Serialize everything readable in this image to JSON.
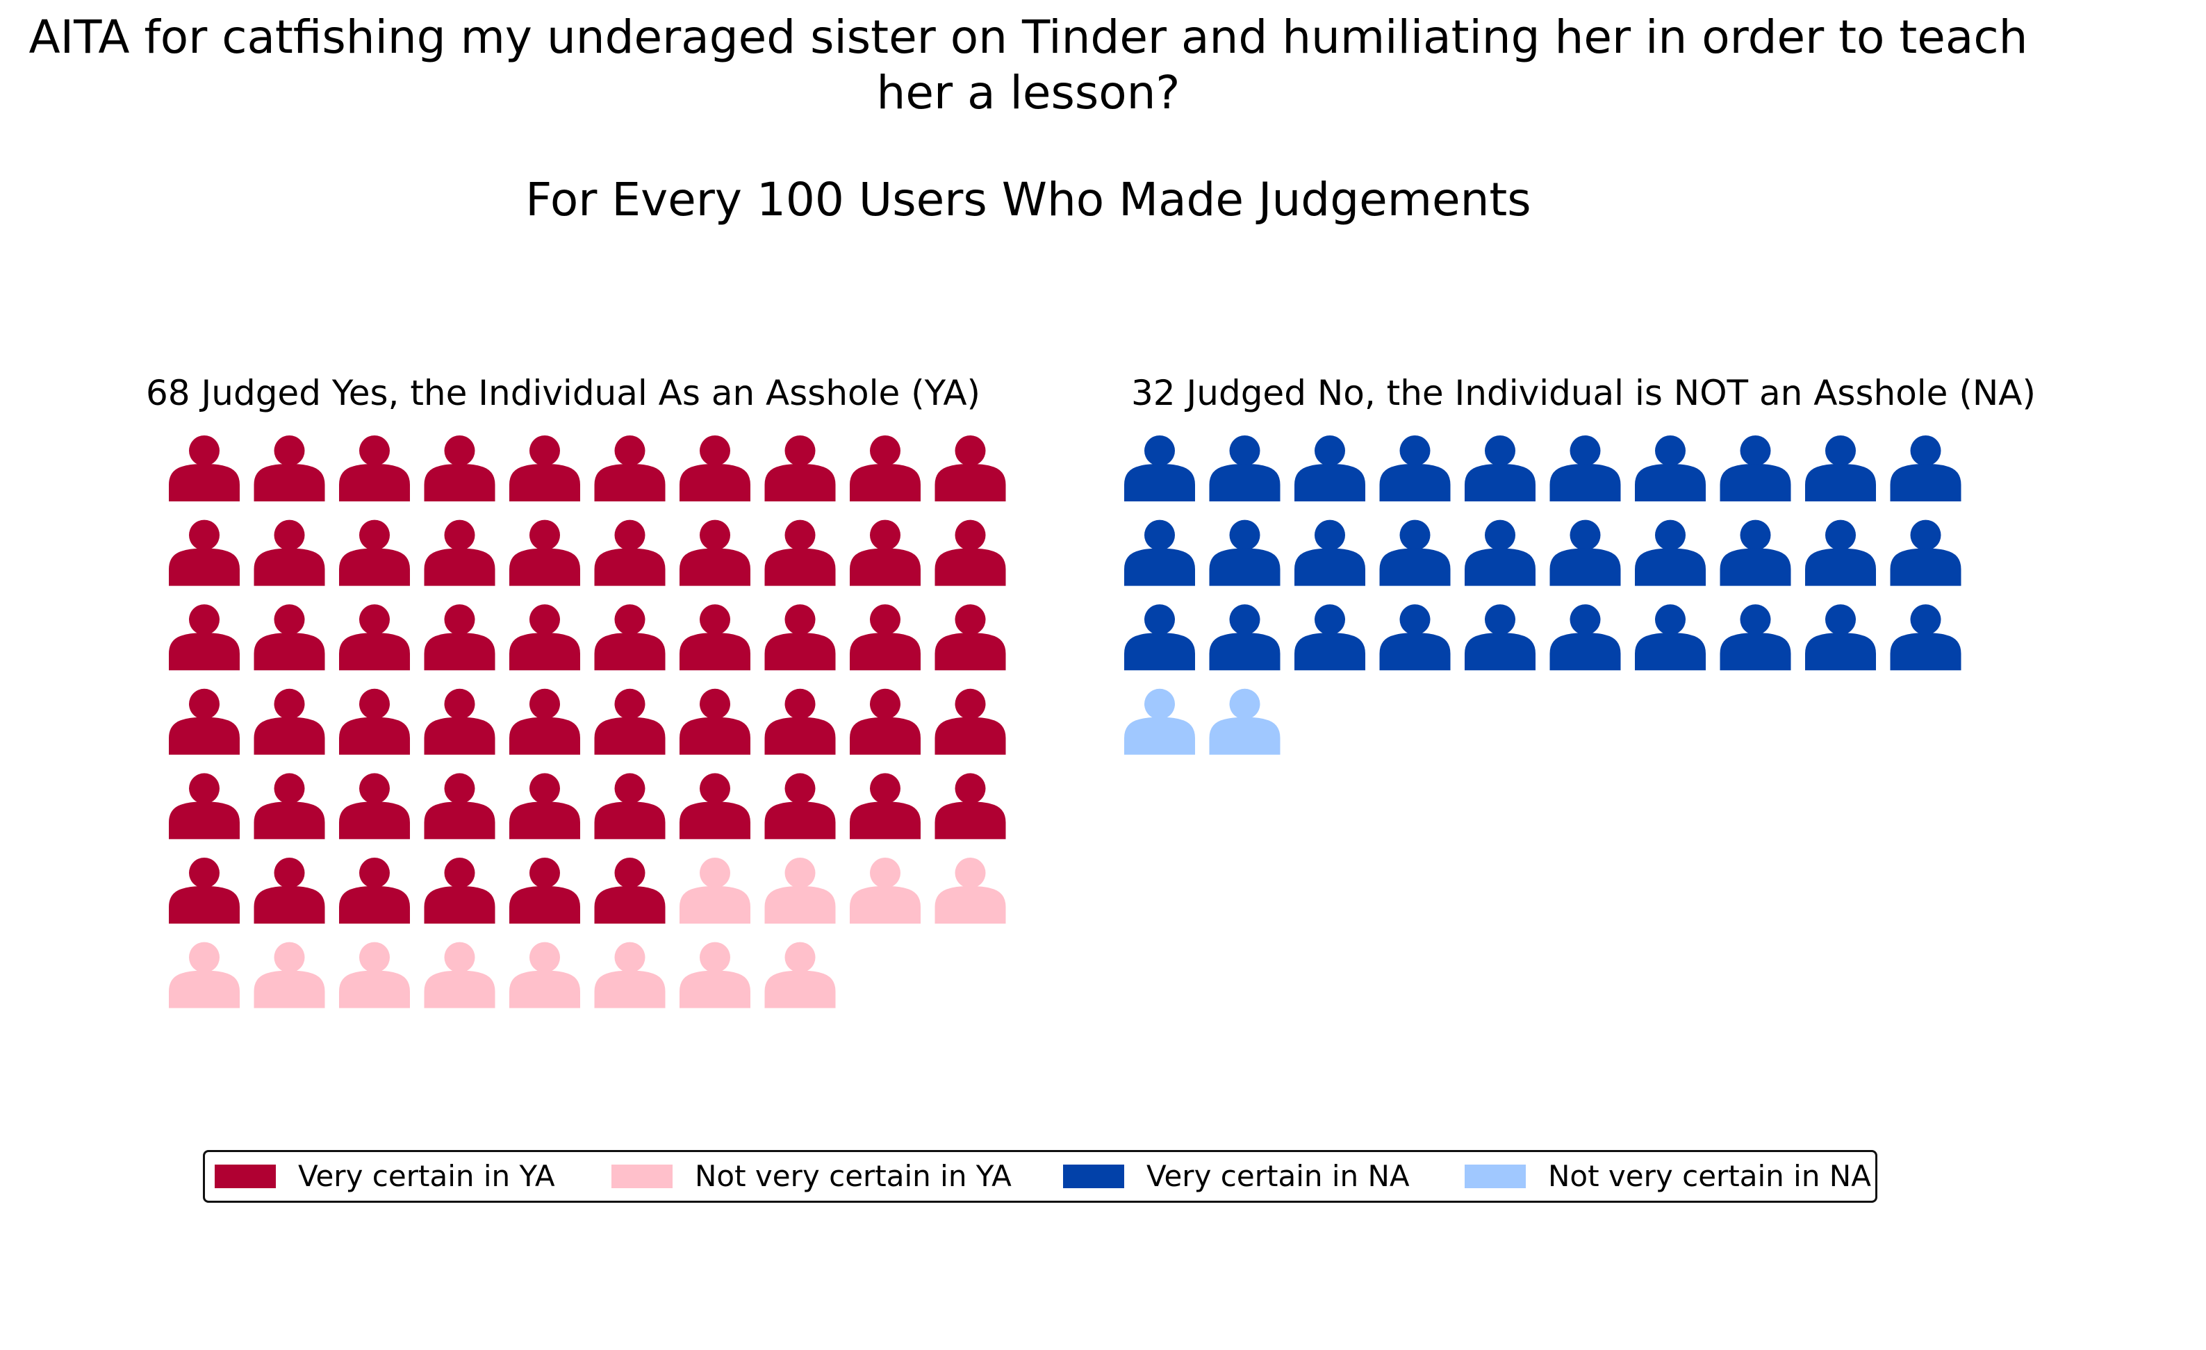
{
  "title": {
    "line1": "AITA for catfishing my underaged sister on Tinder and humiliating her in order to teach",
    "line2": "her a lesson?",
    "subtitle": "For Every 100 Users Who Made Judgements"
  },
  "colors": {
    "very_certain_ya": "#b00032",
    "not_very_certain_ya": "#ffc0cb",
    "very_certain_na": "#0241a9",
    "not_very_certain_na": "#a0c8ff"
  },
  "icon": "person-icon",
  "chart_data": {
    "type": "waffle",
    "title": "AITA for catfishing my underaged sister on Tinder and humiliating her in order to teach her a lesson?",
    "subtitle": "For Every 100 Users Who Made Judgements",
    "columns_per_row": 10,
    "panels": [
      {
        "title": "68 Judged Yes, the Individual As an Asshole (YA)",
        "total": 68,
        "series": [
          {
            "name": "Very certain in YA",
            "value": 56
          },
          {
            "name": "Not very certain in YA",
            "value": 12
          }
        ]
      },
      {
        "title": "32 Judged No, the Individual is NOT an Asshole (NA)",
        "total": 32,
        "series": [
          {
            "name": "Very certain in NA",
            "value": 30
          },
          {
            "name": "Not very certain in NA",
            "value": 2
          }
        ]
      }
    ],
    "legend": {
      "placement": "bottom",
      "entries": [
        "Very certain in YA",
        "Not very certain in YA",
        "Very certain in NA",
        "Not very certain in NA"
      ]
    }
  }
}
